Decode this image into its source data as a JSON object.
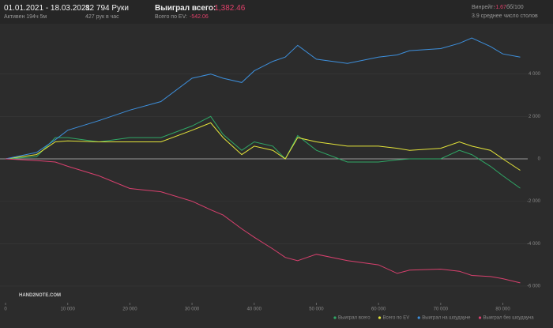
{
  "header": {
    "period": "01.01.2021 - 18.03.2021",
    "active": "Активен 194ч 5м",
    "hands": "82 794 Руки",
    "hands_per_hour": "427 рук в час",
    "won_label": "Выиграл всего:",
    "won_value": "-1,382.46",
    "ev_label": "Всего по EV:",
    "ev_value": "-542.06",
    "winrate_label": "Винрейт:",
    "winrate_value": "-1.67",
    "winrate_unit": "бб/100",
    "tables": "3.9 среднее число столов",
    "logo": "HAND2NOTE.COM"
  },
  "chart_data": {
    "type": "line",
    "x": [
      0,
      5000,
      8000,
      10000,
      15000,
      20000,
      25000,
      30000,
      33000,
      35000,
      38000,
      40000,
      43000,
      45000,
      47000,
      50000,
      55000,
      60000,
      63000,
      65000,
      70000,
      73000,
      75000,
      78000,
      80000,
      82794
    ],
    "xlim": [
      0,
      84000
    ],
    "xticks": [
      0,
      {
        "value": 10000,
        "label": "10 000"
      },
      {
        "value": 20000,
        "label": "20 000"
      },
      {
        "value": 30000,
        "label": "30 000"
      },
      {
        "value": 40000,
        "label": "40 000"
      },
      {
        "value": 50000,
        "label": "50 000"
      },
      {
        "value": 60000,
        "label": "60 000"
      },
      {
        "value": 70000,
        "label": "70 000"
      },
      {
        "value": 80000,
        "label": "80 000"
      }
    ],
    "ylim": [
      -6300,
      6000
    ],
    "yticks": [
      {
        "value": 4000,
        "label": "4 000"
      },
      {
        "value": 2000,
        "label": "2 000"
      },
      0,
      {
        "value": -2000,
        "label": "-2 000"
      },
      {
        "value": -4000,
        "label": "-4 000"
      },
      {
        "value": -6000,
        "label": "-6 000"
      }
    ],
    "grid": true,
    "series": [
      {
        "name": "Выиграл всего",
        "color": "#2fa866",
        "values": [
          0,
          100,
          1000,
          1000,
          800,
          1000,
          1000,
          1550,
          2000,
          1150,
          400,
          800,
          600,
          0,
          1100,
          400,
          -150,
          -150,
          -50,
          0,
          0,
          400,
          200,
          -350,
          -800,
          -1382.46
        ]
      },
      {
        "name": "Всего по EV",
        "color": "#e4e43a",
        "values": [
          0,
          200,
          800,
          850,
          800,
          800,
          800,
          1350,
          1700,
          1000,
          200,
          600,
          400,
          0,
          1000,
          800,
          600,
          600,
          500,
          400,
          500,
          800,
          600,
          400,
          0,
          -542.06
        ]
      },
      {
        "name": "Выиграл на шоудауне",
        "color": "#3d8fdc",
        "values": [
          0,
          300,
          900,
          1350,
          1800,
          2300,
          2700,
          3800,
          4000,
          3800,
          3600,
          4150,
          4600,
          4800,
          5350,
          4700,
          4500,
          4800,
          4900,
          5100,
          5200,
          5450,
          5700,
          5300,
          4950,
          4800
        ]
      },
      {
        "name": "Выиграл без шоудауна",
        "color": "#d8406e",
        "values": [
          0,
          -80,
          -150,
          -350,
          -800,
          -1400,
          -1550,
          -2000,
          -2400,
          -2650,
          -3300,
          -3700,
          -4250,
          -4650,
          -4800,
          -4500,
          -4800,
          -5000,
          -5400,
          -5250,
          -5200,
          -5300,
          -5500,
          -5550,
          -5650,
          -5850
        ]
      }
    ]
  }
}
